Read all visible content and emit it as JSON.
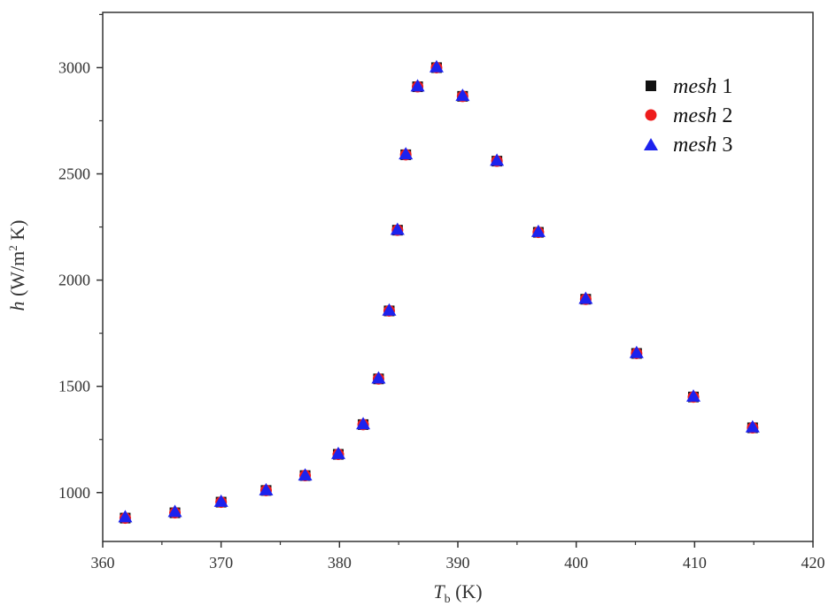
{
  "chart_data": {
    "type": "scatter",
    "title": "",
    "xlabel": {
      "main": "T",
      "sub": "b",
      "unit": " (K)"
    },
    "ylabel": {
      "main": "h",
      "unit": " (W/m",
      "sup": "2",
      "unit_end": " K)"
    },
    "xlim": [
      360,
      420
    ],
    "ylim": [
      770,
      3260
    ],
    "xticks": [
      360,
      370,
      380,
      390,
      400,
      410,
      420
    ],
    "yticks": [
      1000,
      1500,
      2000,
      2500,
      3000
    ],
    "grid": false,
    "legend_position": "top-right",
    "x": [
      361.9,
      366.1,
      370.0,
      373.8,
      377.1,
      379.9,
      382.0,
      383.3,
      384.2,
      384.9,
      385.6,
      386.6,
      388.2,
      390.4,
      393.3,
      396.8,
      400.8,
      405.1,
      409.9,
      414.9
    ],
    "series": [
      {
        "name": "mesh",
        "name_suffix": " 1",
        "marker": "square",
        "color": "#111111",
        "values": [
          880,
          905,
          955,
          1010,
          1080,
          1180,
          1320,
          1535,
          1855,
          2235,
          2590,
          2910,
          3000,
          2865,
          2560,
          2225,
          1910,
          1655,
          1450,
          1305
        ]
      },
      {
        "name": "mesh",
        "name_suffix": " 2",
        "marker": "circle",
        "color": "#ee1c1c",
        "values": [
          880,
          905,
          955,
          1010,
          1080,
          1180,
          1320,
          1535,
          1855,
          2235,
          2590,
          2910,
          3000,
          2865,
          2560,
          2225,
          1910,
          1655,
          1450,
          1305
        ]
      },
      {
        "name": "mesh",
        "name_suffix": " 3",
        "marker": "triangle",
        "color": "#1c22ee",
        "values": [
          885,
          910,
          958,
          1012,
          1082,
          1183,
          1323,
          1538,
          1858,
          2238,
          2593,
          2913,
          3003,
          2868,
          2563,
          2228,
          1913,
          1658,
          1453,
          1308
        ]
      }
    ]
  }
}
